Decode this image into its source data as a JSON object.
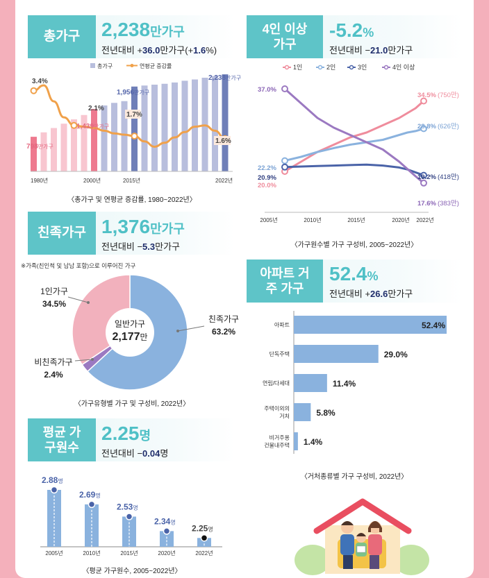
{
  "colors": {
    "teal": "#5ec4c8",
    "navy": "#1f2d6b",
    "bg_pink": "#f4b0bb",
    "series_pink": "#ef8c9c",
    "series_blue": "#8ab2de",
    "series_navy": "#4a63a8",
    "series_purple": "#9b79c1",
    "bar_lavender": "#b8bedd",
    "bar_navy": "#6f7fb8",
    "orange": "#f0a14a"
  },
  "total": {
    "tag": "총가구",
    "big_value": "2,238",
    "big_unit": "만가구",
    "sub_prefix": "전년대비 +",
    "sub_value": "36.0",
    "sub_mid": "만가구(+",
    "sub_pct": "1.6",
    "sub_suffix": "%)",
    "caption": "〈총가구 및 연평균 증감률, 1980~2022년〉",
    "chart_data": {
      "type": "bar",
      "legend": [
        "총가구",
        "연평균 증감률"
      ],
      "x_ticks": [
        "1980년",
        "2000년",
        "2015년",
        "2022년"
      ],
      "bar_values": [
        798,
        900,
        1000,
        1100,
        1200,
        1300,
        1439,
        1520,
        1580,
        1620,
        1956,
        1980,
        2000,
        2020,
        2050,
        2090,
        2120,
        2160,
        2200,
        2238
      ],
      "line_values": [
        3.4,
        3.6,
        3.0,
        2.4,
        2.1,
        2.05,
        2.0,
        1.9,
        1.8,
        1.75,
        1.7,
        1.5,
        1.3,
        1.45,
        1.65,
        1.85,
        2.05,
        2.1,
        1.9,
        1.6
      ],
      "bar_labels": [
        {
          "value": "798",
          "unit": "만가구"
        },
        {
          "value": "1,439",
          "unit": "만가구"
        },
        {
          "value": "1,956",
          "unit": "만가구"
        },
        {
          "value": "2,238",
          "unit": "만가구"
        }
      ],
      "line_labels": [
        "3.4%",
        "2.1%",
        "1.7%",
        "1.6%"
      ]
    }
  },
  "fourplus": {
    "tag": "4인 이상 가구",
    "big_value": "-5.2",
    "big_unit": "%",
    "sub_prefix": "전년대비 −",
    "sub_value": "21.0",
    "sub_suffix": "만가구",
    "caption": "〈가구원수별 가구 구성비, 2005~2022년〉",
    "chart_data": {
      "type": "line",
      "x": [
        2005,
        2007,
        2009,
        2011,
        2013,
        2015,
        2017,
        2019,
        2020,
        2021,
        2022
      ],
      "x_ticks": [
        "2005년",
        "2010년",
        "2015년",
        "2020년",
        "2022년"
      ],
      "series": [
        {
          "name": "1인",
          "values": [
            20.0,
            22.0,
            24.0,
            25.5,
            27.0,
            28.0,
            29.5,
            31.0,
            32.0,
            33.0,
            34.5
          ]
        },
        {
          "name": "2인",
          "values": [
            22.2,
            23.0,
            24.0,
            24.8,
            25.5,
            26.0,
            26.5,
            27.5,
            28.0,
            28.3,
            28.8
          ]
        },
        {
          "name": "3인",
          "values": [
            20.9,
            21.0,
            21.1,
            21.2,
            21.3,
            21.4,
            21.2,
            20.8,
            20.4,
            19.8,
            19.2
          ]
        },
        {
          "name": "4인 이상",
          "values": [
            37.0,
            34.0,
            31.0,
            29.0,
            27.5,
            26.0,
            24.5,
            22.0,
            20.5,
            19.0,
            17.6
          ]
        }
      ],
      "start_labels": [
        "20.0%",
        "22.2%",
        "20.9%",
        "37.0%"
      ],
      "end_labels": [
        {
          "pct": "34.5%",
          "count": "(750만)"
        },
        {
          "pct": "28.8%",
          "count": "(626만)"
        },
        {
          "pct": "19.2%",
          "count": "(418만)"
        },
        {
          "pct": "17.6%",
          "count": "(383만)"
        }
      ]
    }
  },
  "family": {
    "tag": "친족가구",
    "big_value": "1,376",
    "big_unit": "만가구",
    "sub_prefix": "전년대비 −",
    "sub_value": "5.3",
    "sub_suffix": "만가구",
    "note": "※가족(친인척 및 남남 포함)으로 이루어진 가구",
    "caption": "〈가구유형별 가구 및 구성비, 2022년〉",
    "chart_data": {
      "type": "pie",
      "labels": [
        "친족가구",
        "비친족가구",
        "1인가구"
      ],
      "values": [
        63.2,
        2.4,
        34.5
      ],
      "value_labels": [
        "63.2%",
        "2.4%",
        "34.5%"
      ],
      "center_title": "일반가구",
      "center_value": "2,177",
      "center_unit": "만"
    }
  },
  "apart": {
    "tag": "아파트 거주 가구",
    "big_value": "52.4",
    "big_unit": "%",
    "sub_prefix": "전년대비 +",
    "sub_value": "26.6",
    "sub_suffix": "만가구",
    "caption": "〈거처종류별 가구 구성비, 2022년〉",
    "chart_data": {
      "type": "bar",
      "categories": [
        "아파트",
        "단독주택",
        "연립/다세대",
        "주택이외의 거처",
        "비거주용 건물내주택"
      ],
      "values": [
        52.4,
        29.0,
        11.4,
        5.8,
        1.4
      ],
      "value_labels": [
        "52.4%",
        "29.0%",
        "11.4%",
        "5.8%",
        "1.4%"
      ]
    }
  },
  "avgsize": {
    "tag": "평균 가구원수",
    "big_value": "2.25",
    "big_unit": "명",
    "sub_prefix": "전년대비 −",
    "sub_value": "0.04",
    "sub_suffix": "명",
    "caption": "〈평균 가구원수, 2005~2022년〉",
    "chart_data": {
      "type": "bar",
      "categories": [
        "2005년",
        "2010년",
        "2015년",
        "2020년",
        "2022년"
      ],
      "values": [
        2.88,
        2.69,
        2.53,
        2.34,
        2.25
      ],
      "value_labels": [
        "2.88",
        "2.69",
        "2.53",
        "2.34",
        "2.25"
      ],
      "unit": "명"
    }
  }
}
